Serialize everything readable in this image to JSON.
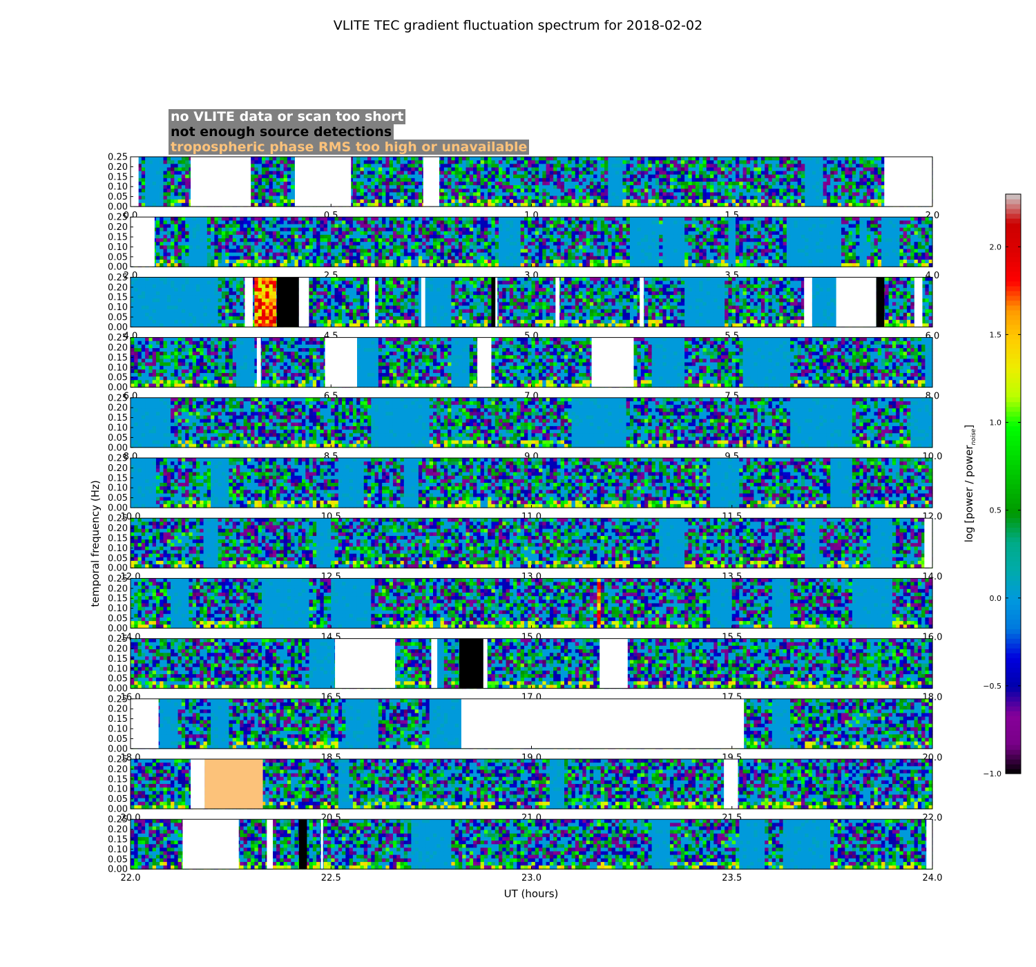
{
  "chart_data": {
    "type": "heatmap",
    "title": "VLITE TEC gradient fluctuation spectrum for 2018-02-02",
    "xlabel": "UT (hours)",
    "ylabel": "temporal frequency (Hz)",
    "colorbar": {
      "label_main": "log [power / power",
      "label_sub": "noise",
      "label_end": "]",
      "range": [
        -1.0,
        2.3
      ],
      "ticks": [
        "−1.0",
        "−0.5",
        "0.0",
        "0.5",
        "1.0",
        "1.5",
        "2.0"
      ],
      "tick_values": [
        -1.0,
        -0.5,
        0.0,
        0.5,
        1.0,
        1.5,
        2.0
      ],
      "colormap": "nipy_spectral"
    },
    "ylim": [
      0.0,
      0.25
    ],
    "y_ticks": [
      "0.00",
      "0.05",
      "0.10",
      "0.15",
      "0.20",
      "0.25"
    ],
    "legend": [
      {
        "label": "no VLITE data or scan too short",
        "color": "#ffffff"
      },
      {
        "label": "not enough source detections",
        "color": "#000000"
      },
      {
        "label": "tropospheric phase RMS too high or unavailable",
        "color": "#fcc27a"
      }
    ],
    "legend_box_color": "#808080",
    "panels": [
      {
        "xlim": [
          0.0,
          2.0
        ],
        "x_ticks": [
          "0.0",
          "0.5",
          "1.0",
          "1.5",
          "2.0"
        ],
        "gaps": [
          [
            0,
            0.02,
            "white"
          ],
          [
            0.15,
            0.3,
            "white"
          ],
          [
            0.41,
            0.55,
            "white"
          ],
          [
            0.73,
            0.77,
            "white"
          ],
          [
            1.88,
            2.0,
            "white"
          ]
        ],
        "quiet": [
          [
            0.04,
            0.08
          ],
          [
            0.41,
            0.45
          ],
          [
            1.19,
            1.23
          ],
          [
            1.68,
            1.73
          ]
        ]
      },
      {
        "xlim": [
          2.0,
          4.0
        ],
        "x_ticks": [
          "2.0",
          "2.5",
          "3.0",
          "3.5",
          "4.0"
        ],
        "gaps": [
          [
            2.0,
            2.06,
            "white"
          ]
        ],
        "quiet": [
          [
            2.15,
            2.19
          ],
          [
            2.92,
            2.97
          ],
          [
            3.25,
            3.28
          ],
          [
            3.28,
            3.32
          ],
          [
            3.33,
            3.38
          ],
          [
            3.49,
            3.51
          ],
          [
            3.64,
            3.77
          ],
          [
            3.82,
            3.84
          ],
          [
            3.87,
            3.92
          ]
        ]
      },
      {
        "xlim": [
          4.0,
          6.0
        ],
        "x_ticks": [
          "4.0",
          "4.5",
          "5.0",
          "5.5",
          "6.0"
        ],
        "gaps": [
          [
            4.285,
            4.305,
            "white"
          ],
          [
            4.365,
            4.42,
            "black"
          ],
          [
            4.42,
            4.445,
            "white"
          ],
          [
            4.595,
            4.61,
            "white"
          ],
          [
            4.725,
            4.735,
            "white"
          ],
          [
            4.9,
            4.91,
            "black"
          ],
          [
            4.91,
            4.915,
            "white"
          ],
          [
            5.06,
            5.07,
            "white"
          ],
          [
            5.27,
            5.28,
            "white"
          ],
          [
            5.68,
            5.7,
            "white"
          ],
          [
            5.76,
            5.86,
            "white"
          ],
          [
            5.86,
            5.88,
            "black"
          ],
          [
            5.955,
            5.975,
            "white"
          ]
        ],
        "hot": [
          [
            4.305,
            4.365
          ]
        ],
        "quiet": [
          [
            4.0,
            4.22
          ],
          [
            4.72,
            4.8
          ],
          [
            5.38,
            5.48
          ],
          [
            5.7,
            5.76
          ]
        ]
      },
      {
        "xlim": [
          6.0,
          8.0
        ],
        "x_ticks": [
          "6.0",
          "6.5",
          "7.0",
          "7.5",
          "8.0"
        ],
        "gaps": [
          [
            6.315,
            6.325,
            "white"
          ],
          [
            6.485,
            6.565,
            "white"
          ],
          [
            6.865,
            6.9,
            "white"
          ],
          [
            7.15,
            7.255,
            "white"
          ]
        ],
        "quiet": [
          [
            6.26,
            6.31
          ],
          [
            6.565,
            6.62
          ],
          [
            6.8,
            6.85
          ],
          [
            7.3,
            7.38
          ],
          [
            7.53,
            7.65
          ],
          [
            7.98,
            8.0
          ]
        ]
      },
      {
        "xlim": [
          8.0,
          10.0
        ],
        "x_ticks": [
          "8.0",
          "8.5",
          "9.0",
          "9.5",
          "10.0"
        ],
        "gaps": [],
        "quiet": [
          [
            8.0,
            8.1
          ],
          [
            8.6,
            8.75
          ],
          [
            9.1,
            9.24
          ],
          [
            9.65,
            9.8
          ],
          [
            9.95,
            10.0
          ]
        ]
      },
      {
        "xlim": [
          10.0,
          12.0
        ],
        "x_ticks": [
          "10.0",
          "10.5",
          "11.0",
          "11.5",
          "12.0"
        ],
        "gaps": [],
        "quiet": [
          [
            10.0,
            10.06
          ],
          [
            10.2,
            10.25
          ],
          [
            10.52,
            10.58
          ],
          [
            10.68,
            10.72
          ],
          [
            11.45,
            11.52
          ],
          [
            11.75,
            11.8
          ]
        ]
      },
      {
        "xlim": [
          12.0,
          14.0
        ],
        "x_ticks": [
          "12.0",
          "12.5",
          "13.0",
          "13.5",
          "14.0"
        ],
        "gaps": [
          [
            13.98,
            14.0,
            "white"
          ]
        ],
        "quiet": [
          [
            12.18,
            12.22
          ],
          [
            12.46,
            12.5
          ],
          [
            13.32,
            13.38
          ],
          [
            13.68,
            13.72
          ],
          [
            13.85,
            13.9
          ]
        ]
      },
      {
        "xlim": [
          14.0,
          16.0
        ],
        "x_ticks": [
          "14.0",
          "14.5",
          "15.0",
          "15.5",
          "16.0"
        ],
        "gaps": [],
        "quiet": [
          [
            14.1,
            14.15
          ],
          [
            14.33,
            14.45
          ],
          [
            14.5,
            14.6
          ],
          [
            15.45,
            15.5
          ],
          [
            15.6,
            15.65
          ],
          [
            15.8,
            15.9
          ]
        ],
        "hot": [
          [
            15.16,
            15.175
          ]
        ]
      },
      {
        "xlim": [
          16.0,
          18.0
        ],
        "x_ticks": [
          "16.0",
          "16.5",
          "17.0",
          "17.5",
          "18.0"
        ],
        "gaps": [
          [
            16.51,
            16.66,
            "white"
          ],
          [
            16.75,
            16.765,
            "white"
          ],
          [
            16.82,
            16.88,
            "black"
          ],
          [
            16.88,
            16.89,
            "white"
          ],
          [
            17.17,
            17.24,
            "white"
          ]
        ],
        "quiet": [
          [
            16.45,
            16.51
          ],
          [
            16.765,
            16.78
          ]
        ]
      },
      {
        "xlim": [
          18.0,
          20.0
        ],
        "x_ticks": [
          "18.0",
          "18.5",
          "19.0",
          "19.5",
          "20.0"
        ],
        "gaps": [
          [
            18.0,
            18.07,
            "white"
          ],
          [
            18.825,
            19.53,
            "white"
          ]
        ],
        "quiet": [
          [
            18.07,
            18.12
          ],
          [
            18.2,
            18.25
          ],
          [
            18.54,
            18.62
          ],
          [
            18.75,
            18.825
          ],
          [
            19.6,
            19.65
          ]
        ]
      },
      {
        "xlim": [
          20.0,
          22.0
        ],
        "x_ticks": [
          "20.0",
          "20.5",
          "21.0",
          "21.5",
          "22.0"
        ],
        "gaps": [
          [
            20.15,
            20.185,
            "white"
          ],
          [
            20.185,
            20.33,
            "orange"
          ],
          [
            21.48,
            21.515,
            "white"
          ]
        ],
        "quiet": [
          [
            20.52,
            20.55
          ],
          [
            21.05,
            21.08
          ]
        ]
      },
      {
        "xlim": [
          22.0,
          24.0
        ],
        "x_ticks": [
          "22.0",
          "22.5",
          "23.0",
          "23.5",
          "24.0"
        ],
        "gaps": [
          [
            22.13,
            22.27,
            "white"
          ],
          [
            22.34,
            22.355,
            "white"
          ],
          [
            22.42,
            22.44,
            "black"
          ],
          [
            22.475,
            22.48,
            "white"
          ],
          [
            23.985,
            24.0,
            "white"
          ]
        ],
        "quiet": [
          [
            22.7,
            22.8
          ],
          [
            23.3,
            23.35
          ],
          [
            23.52,
            23.58
          ],
          [
            23.63,
            23.75
          ]
        ]
      }
    ]
  }
}
